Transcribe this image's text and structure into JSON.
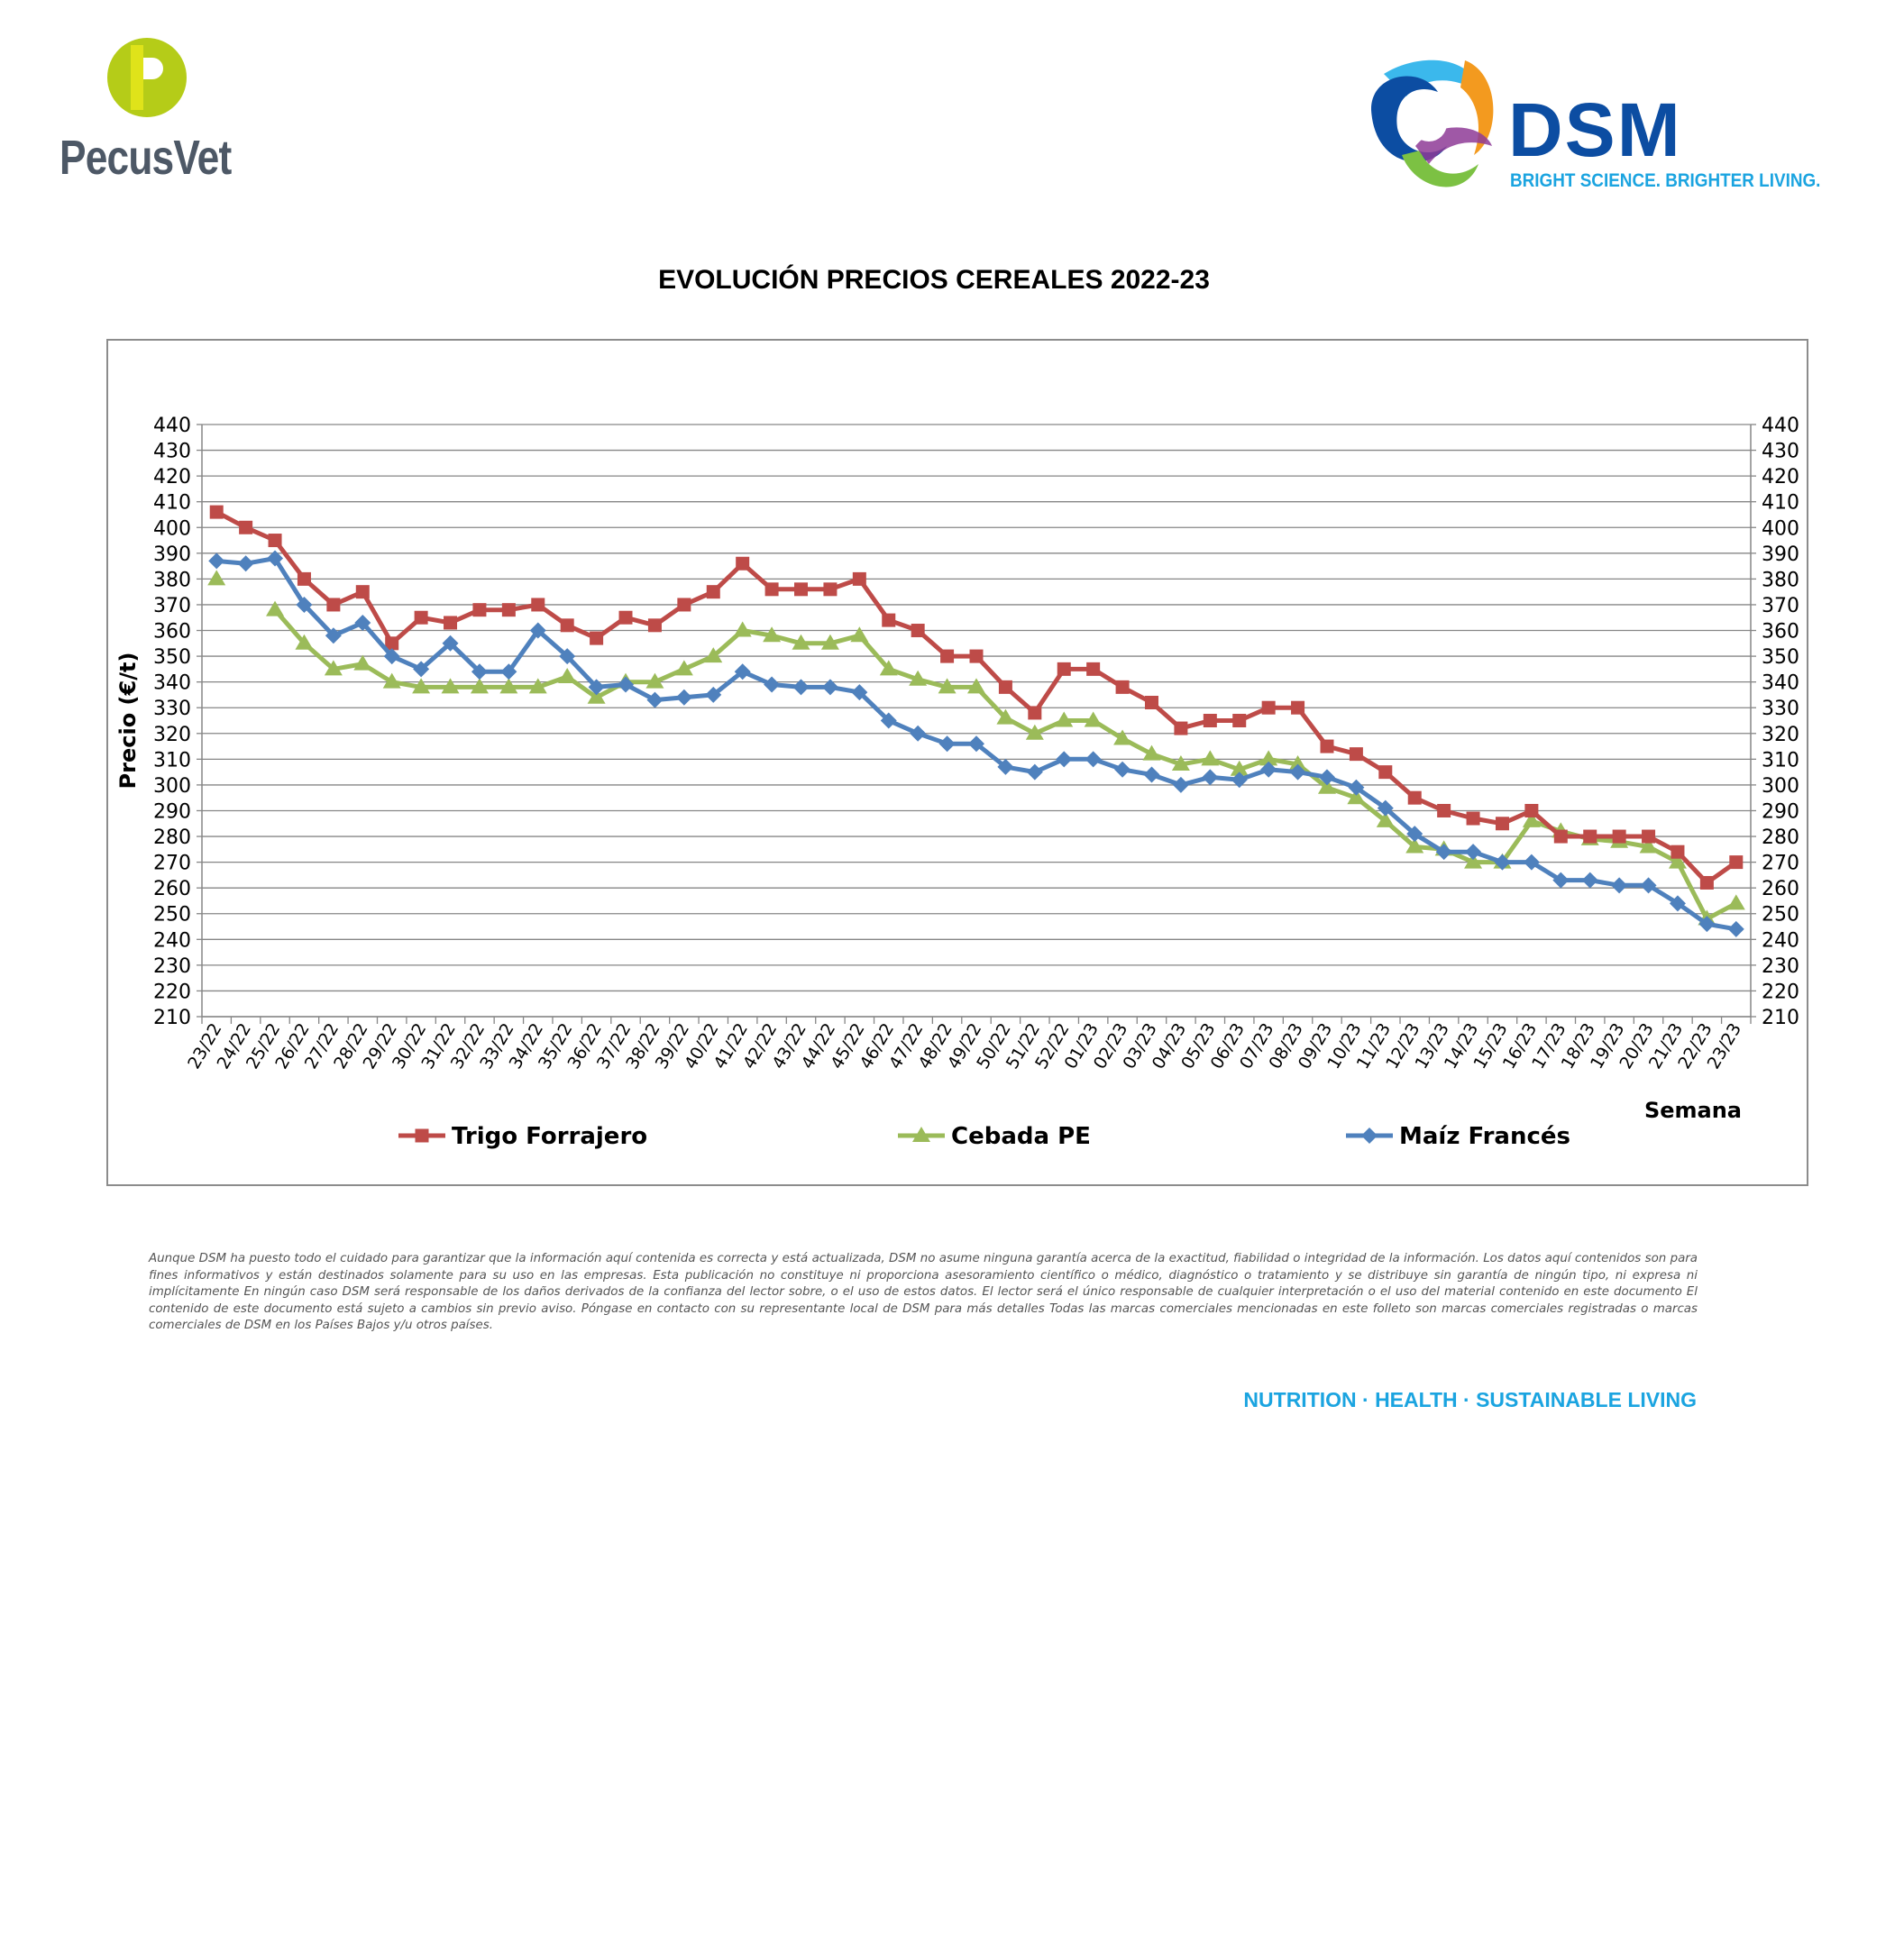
{
  "brand_left": {
    "name": "PecusVet",
    "colors": {
      "mark": "#b5cc18",
      "text": "#4d5866"
    }
  },
  "brand_right": {
    "name": "DSM",
    "tagline": "BRIGHT SCIENCE. BRIGHTER LIVING.",
    "colors": {
      "word": "#0c4da2",
      "tagline": "#1ba4e0"
    }
  },
  "chart_data": {
    "type": "line",
    "title": "EVOLUCIÓN PRECIOS CEREALES 2022-23",
    "ylabel": "Precio (€/t)",
    "xlabel": "Semana",
    "ylim": [
      210,
      440
    ],
    "ytick_step": 10,
    "secondary_y_axis": true,
    "grid": true,
    "legend_position": "bottom",
    "categories": [
      "23/22",
      "24/22",
      "25/22",
      "26/22",
      "27/22",
      "28/22",
      "29/22",
      "30/22",
      "31/22",
      "32/22",
      "33/22",
      "34/22",
      "35/22",
      "36/22",
      "37/22",
      "38/22",
      "39/22",
      "40/22",
      "41/22",
      "42/22",
      "43/22",
      "44/22",
      "45/22",
      "46/22",
      "47/22",
      "48/22",
      "49/22",
      "50/22",
      "51/22",
      "52/22",
      "01/23",
      "02/23",
      "03/23",
      "04/23",
      "05/23",
      "06/23",
      "07/23",
      "08/23",
      "09/23",
      "10/23",
      "11/23",
      "12/23",
      "13/23",
      "14/23",
      "15/23",
      "16/23",
      "17/23",
      "18/23",
      "19/23",
      "20/23",
      "21/23",
      "22/23",
      "23/23"
    ],
    "series": [
      {
        "name": "Trigo Forrajero",
        "color": "#be4b48",
        "marker": "square",
        "values": [
          406,
          400,
          395,
          380,
          370,
          375,
          355,
          365,
          363,
          368,
          368,
          370,
          362,
          357,
          365,
          362,
          370,
          375,
          386,
          376,
          376,
          376,
          380,
          364,
          360,
          350,
          350,
          338,
          328,
          345,
          345,
          338,
          332,
          322,
          325,
          325,
          330,
          330,
          315,
          312,
          305,
          295,
          290,
          287,
          285,
          290,
          280,
          280,
          280,
          280,
          274,
          262,
          270
        ]
      },
      {
        "name": "Cebada PE",
        "color": "#9bbb59",
        "marker": "triangle",
        "values": [
          380,
          null,
          368,
          355,
          345,
          347,
          340,
          338,
          338,
          338,
          338,
          338,
          342,
          334,
          340,
          340,
          345,
          350,
          360,
          358,
          355,
          355,
          358,
          345,
          341,
          338,
          338,
          326,
          320,
          325,
          325,
          318,
          312,
          308,
          310,
          306,
          310,
          308,
          299,
          295,
          286,
          276,
          275,
          270,
          270,
          286,
          282,
          279,
          278,
          276,
          270,
          248,
          254
        ]
      },
      {
        "name": "Maíz Francés",
        "color": "#4f81bd",
        "marker": "diamond",
        "values": [
          387,
          386,
          388,
          370,
          358,
          363,
          350,
          345,
          355,
          344,
          344,
          360,
          350,
          338,
          339,
          333,
          334,
          335,
          344,
          339,
          338,
          338,
          336,
          325,
          320,
          316,
          316,
          307,
          305,
          310,
          310,
          306,
          304,
          300,
          303,
          302,
          306,
          305,
          303,
          299,
          291,
          281,
          274,
          274,
          270,
          270,
          263,
          263,
          261,
          261,
          254,
          246,
          244
        ]
      }
    ]
  },
  "disclaimer": "Aunque DSM ha puesto todo el cuidado para garantizar que la información aquí contenida es correcta y está actualizada, DSM no asume ninguna garantía acerca de la exactitud, fiabilidad o integridad de la información. Los datos aquí contenidos son para fines informativos y están destinados solamente para su uso en las empresas. Esta publicación no constituye ni proporciona asesoramiento científico o médico, diagnóstico o tratamiento y se distribuye sin garantía de ningún tipo, ni expresa ni implícitamente En ningún caso DSM será responsable de los daños derivados de la confianza del lector sobre, o el uso de estos datos. El lector será el único responsable de cualquier interpretación o el uso del material contenido en este documento El contenido de este documento está sujeto a cambios sin previo aviso. Póngase en contacto con su representante local de DSM para más detalles Todas las marcas comerciales mencionadas en este folleto son marcas comerciales registradas o marcas comerciales de DSM en los Países Bajos y/u otros países.",
  "footer": {
    "tagline": "NUTRITION · HEALTH · SUSTAINABLE LIVING"
  }
}
